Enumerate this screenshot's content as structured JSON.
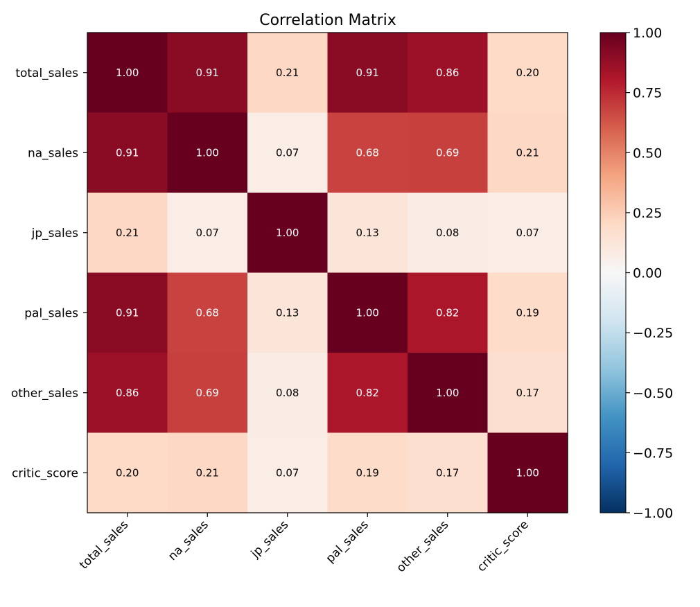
{
  "chart_data": {
    "type": "heatmap",
    "title": "Correlation Matrix",
    "x_labels": [
      "total_sales",
      "na_sales",
      "jp_sales",
      "pal_sales",
      "other_sales",
      "critic_score"
    ],
    "y_labels": [
      "total_sales",
      "na_sales",
      "jp_sales",
      "pal_sales",
      "other_sales",
      "critic_score"
    ],
    "matrix": [
      [
        1.0,
        0.91,
        0.21,
        0.91,
        0.86,
        0.2
      ],
      [
        0.91,
        1.0,
        0.07,
        0.68,
        0.69,
        0.21
      ],
      [
        0.21,
        0.07,
        1.0,
        0.13,
        0.08,
        0.07
      ],
      [
        0.91,
        0.68,
        0.13,
        1.0,
        0.82,
        0.19
      ],
      [
        0.86,
        0.69,
        0.08,
        0.82,
        1.0,
        0.17
      ],
      [
        0.2,
        0.21,
        0.07,
        0.19,
        0.17,
        1.0
      ]
    ],
    "cell_labels": [
      [
        "1.00",
        "0.91",
        "0.21",
        "0.91",
        "0.86",
        "0.20"
      ],
      [
        "0.91",
        "1.00",
        "0.07",
        "0.68",
        "0.69",
        "0.21"
      ],
      [
        "0.21",
        "0.07",
        "1.00",
        "0.13",
        "0.08",
        "0.07"
      ],
      [
        "0.91",
        "0.68",
        "0.13",
        "1.00",
        "0.82",
        "0.19"
      ],
      [
        "0.86",
        "0.69",
        "0.08",
        "0.82",
        "1.00",
        "0.17"
      ],
      [
        "0.20",
        "0.21",
        "0.07",
        "0.19",
        "0.17",
        "1.00"
      ]
    ],
    "colormap": "RdBu_r",
    "vmin": -1.0,
    "vmax": 1.0,
    "colorbar_ticks": [
      1.0,
      0.75,
      0.5,
      0.25,
      0.0,
      -0.25,
      -0.5,
      -0.75,
      -1.0
    ],
    "colorbar_tick_labels": [
      "1.00",
      "0.75",
      "0.50",
      "0.25",
      "0.00",
      "−0.25",
      "−0.50",
      "−0.75",
      "−1.00"
    ],
    "grid": false,
    "xlabel": "",
    "ylabel": ""
  },
  "colors": {
    "colormap_stops": [
      "#053061",
      "#2166ac",
      "#4393c3",
      "#92c5de",
      "#d1e5f0",
      "#f7f7f7",
      "#fddbc7",
      "#f4a582",
      "#d6604d",
      "#b2182b",
      "#67001f"
    ],
    "light_text": "#ffffff",
    "dark_text": "#000000"
  }
}
